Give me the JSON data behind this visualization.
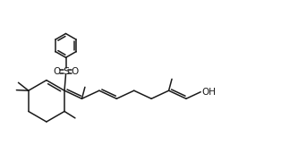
{
  "bg_color": "#ffffff",
  "line_color": "#1a1a1a",
  "line_width": 1.1,
  "figsize": [
    3.14,
    1.81
  ],
  "dpi": 100,
  "xlim": [
    0,
    10.5
  ],
  "ylim": [
    0.2,
    6.2
  ]
}
